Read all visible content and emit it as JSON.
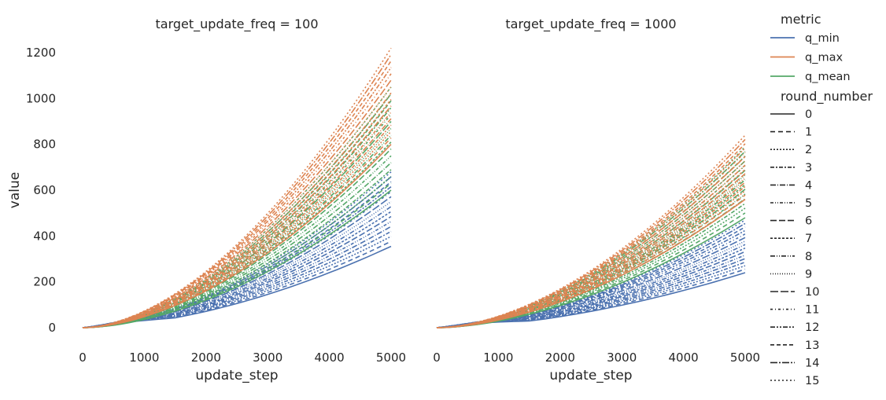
{
  "chart_data": [
    {
      "type": "line",
      "title": "target_update_freq = 100",
      "xlabel": "update_step",
      "ylabel": "value",
      "xlim": [
        0,
        5000
      ],
      "ylim": [
        -60,
        1240
      ],
      "x_ticks": [
        "0",
        "1000",
        "2000",
        "3000",
        "4000",
        "5000"
      ],
      "y_ticks": [
        "0",
        "200",
        "400",
        "600",
        "800",
        "1000",
        "1200"
      ],
      "grid": false,
      "series_summary": [
        {
          "metric": "q_min",
          "round_numbers": "0-15",
          "end_value_range_at_5000": [
            355,
            680
          ],
          "value_at_2000_approx": 60
        },
        {
          "metric": "q_max",
          "round_numbers": "0-15",
          "end_value_range_at_5000": [
            800,
            1220
          ],
          "value_at_2000_approx": 230
        },
        {
          "metric": "q_mean",
          "round_numbers": "0-15",
          "end_value_range_at_5000": [
            600,
            1050
          ],
          "value_at_2000_approx": 150
        }
      ]
    },
    {
      "type": "line",
      "title": "target_update_freq = 1000",
      "xlabel": "update_step",
      "ylabel": "",
      "xlim": [
        0,
        5000
      ],
      "ylim": [
        -60,
        1240
      ],
      "x_ticks": [
        "0",
        "1000",
        "2000",
        "3000",
        "4000",
        "5000"
      ],
      "y_ticks": [],
      "grid": false,
      "series_summary": [
        {
          "metric": "q_min",
          "round_numbers": "0-15",
          "end_value_range_at_5000": [
            240,
            470
          ],
          "value_at_2000_approx": 45
        },
        {
          "metric": "q_max",
          "round_numbers": "0-15",
          "end_value_range_at_5000": [
            560,
            840
          ],
          "value_at_2000_approx": 140
        },
        {
          "metric": "q_mean",
          "round_numbers": "0-15",
          "end_value_range_at_5000": [
            480,
            790
          ],
          "value_at_2000_approx": 110
        }
      ]
    }
  ],
  "legend": {
    "placement": "right",
    "metric_title": "metric",
    "metrics": [
      {
        "label": "q_min",
        "color": "#4c72b0"
      },
      {
        "label": "q_max",
        "color": "#dd8452"
      },
      {
        "label": "q_mean",
        "color": "#55a868"
      }
    ],
    "round_title": "round_number",
    "rounds": [
      "0",
      "1",
      "2",
      "3",
      "4",
      "5",
      "6",
      "7",
      "8",
      "9",
      "10",
      "11",
      "12",
      "13",
      "14",
      "15"
    ]
  }
}
